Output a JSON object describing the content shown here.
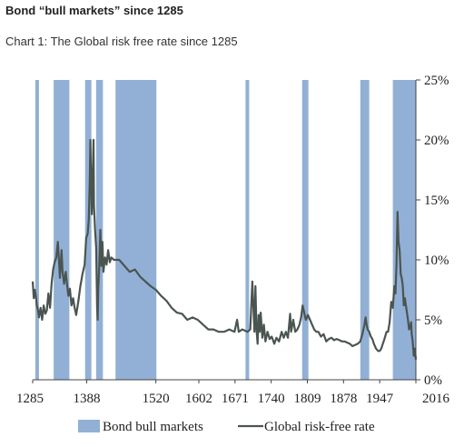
{
  "title": "Bond “bull markets” since 1285",
  "subtitle": "Chart 1: The Global risk free rate since 1285",
  "colors": {
    "bars": "#92b0d6",
    "line": "#4a5550",
    "axis": "#444444"
  },
  "chart_data": {
    "type": "line",
    "x_range": [
      1285,
      2016
    ],
    "ylim": [
      0,
      25
    ],
    "x_ticks": [
      1285,
      1388,
      1520,
      1602,
      1671,
      1740,
      1809,
      1878,
      1947,
      2016
    ],
    "y_ticks": [
      "0%",
      "5%",
      "10%",
      "15%",
      "20%",
      "25%"
    ],
    "legend": {
      "position": "bottom",
      "bars_label": "Bond bull markets",
      "line_label": "Global risk-free rate"
    },
    "bull_markets": [
      [
        1290,
        1297
      ],
      [
        1325,
        1355
      ],
      [
        1385,
        1397
      ],
      [
        1406,
        1419
      ],
      [
        1443,
        1521
      ],
      [
        1691,
        1698
      ],
      [
        1799,
        1811
      ],
      [
        1910,
        1927
      ],
      [
        1972,
        2016
      ]
    ],
    "series": [
      {
        "name": "Global risk-free rate",
        "points": [
          [
            1285,
            8.2
          ],
          [
            1287,
            6.8
          ],
          [
            1289,
            7.5
          ],
          [
            1291,
            7.0
          ],
          [
            1293,
            6.2
          ],
          [
            1295,
            5.8
          ],
          [
            1297,
            5.2
          ],
          [
            1300,
            6.0
          ],
          [
            1303,
            5.0
          ],
          [
            1306,
            6.2
          ],
          [
            1309,
            5.5
          ],
          [
            1312,
            5.8
          ],
          [
            1315,
            7.2
          ],
          [
            1318,
            6.0
          ],
          [
            1321,
            8.0
          ],
          [
            1324,
            9.2
          ],
          [
            1327,
            9.8
          ],
          [
            1330,
            10.2
          ],
          [
            1333,
            11.5
          ],
          [
            1335,
            10.0
          ],
          [
            1337,
            8.5
          ],
          [
            1340,
            10.8
          ],
          [
            1342,
            9.0
          ],
          [
            1345,
            8.0
          ],
          [
            1348,
            9.0
          ],
          [
            1350,
            8.2
          ],
          [
            1353,
            7.0
          ],
          [
            1356,
            7.6
          ],
          [
            1359,
            6.2
          ],
          [
            1362,
            6.8
          ],
          [
            1365,
            6.0
          ],
          [
            1368,
            5.4
          ],
          [
            1372,
            6.5
          ],
          [
            1376,
            7.8
          ],
          [
            1380,
            8.8
          ],
          [
            1384,
            9.6
          ],
          [
            1387,
            11.8
          ],
          [
            1390,
            12.2
          ],
          [
            1392,
            13.4
          ],
          [
            1394,
            16.8
          ],
          [
            1395,
            20.0
          ],
          [
            1396,
            17.5
          ],
          [
            1397,
            15.2
          ],
          [
            1398,
            13.8
          ],
          [
            1400,
            18.0
          ],
          [
            1401,
            20.0
          ],
          [
            1402,
            14.5
          ],
          [
            1404,
            12.5
          ],
          [
            1406,
            11.0
          ],
          [
            1408,
            6.0
          ],
          [
            1409,
            5.0
          ],
          [
            1410,
            7.5
          ],
          [
            1412,
            9.5
          ],
          [
            1414,
            12.5
          ],
          [
            1416,
            9.5
          ],
          [
            1418,
            11.5
          ],
          [
            1420,
            9.0
          ],
          [
            1423,
            10.2
          ],
          [
            1426,
            9.6
          ],
          [
            1429,
            10.8
          ],
          [
            1432,
            9.8
          ],
          [
            1435,
            10.2
          ],
          [
            1440,
            10.0
          ],
          [
            1450,
            10.0
          ],
          [
            1460,
            9.5
          ],
          [
            1470,
            9.0
          ],
          [
            1480,
            9.2
          ],
          [
            1490,
            8.6
          ],
          [
            1500,
            8.2
          ],
          [
            1510,
            7.8
          ],
          [
            1520,
            7.5
          ],
          [
            1530,
            7.0
          ],
          [
            1540,
            6.6
          ],
          [
            1550,
            6.0
          ],
          [
            1560,
            5.6
          ],
          [
            1570,
            5.5
          ],
          [
            1580,
            5.0
          ],
          [
            1590,
            5.2
          ],
          [
            1600,
            5.0
          ],
          [
            1610,
            4.6
          ],
          [
            1620,
            4.2
          ],
          [
            1630,
            4.2
          ],
          [
            1640,
            4.0
          ],
          [
            1650,
            4.0
          ],
          [
            1660,
            4.2
          ],
          [
            1670,
            4.0
          ],
          [
            1675,
            5.0
          ],
          [
            1678,
            4.0
          ],
          [
            1685,
            4.2
          ],
          [
            1695,
            4.0
          ],
          [
            1700,
            4.2
          ],
          [
            1704,
            8.2
          ],
          [
            1706,
            6.2
          ],
          [
            1708,
            4.0
          ],
          [
            1710,
            7.8
          ],
          [
            1712,
            4.2
          ],
          [
            1714,
            3.0
          ],
          [
            1716,
            5.4
          ],
          [
            1718,
            4.0
          ],
          [
            1720,
            5.6
          ],
          [
            1723,
            3.5
          ],
          [
            1726,
            4.6
          ],
          [
            1729,
            3.2
          ],
          [
            1733,
            4.0
          ],
          [
            1737,
            3.4
          ],
          [
            1741,
            3.6
          ],
          [
            1746,
            3.0
          ],
          [
            1750,
            3.5
          ],
          [
            1755,
            3.2
          ],
          [
            1760,
            4.0
          ],
          [
            1764,
            3.5
          ],
          [
            1768,
            4.0
          ],
          [
            1772,
            3.5
          ],
          [
            1776,
            5.5
          ],
          [
            1778,
            4.0
          ],
          [
            1782,
            5.0
          ],
          [
            1786,
            4.0
          ],
          [
            1790,
            4.2
          ],
          [
            1794,
            4.6
          ],
          [
            1797,
            5.2
          ],
          [
            1800,
            6.2
          ],
          [
            1803,
            5.6
          ],
          [
            1806,
            5.0
          ],
          [
            1810,
            5.4
          ],
          [
            1814,
            5.0
          ],
          [
            1818,
            4.6
          ],
          [
            1822,
            4.2
          ],
          [
            1826,
            4.0
          ],
          [
            1830,
            4.0
          ],
          [
            1835,
            3.6
          ],
          [
            1840,
            3.8
          ],
          [
            1845,
            3.2
          ],
          [
            1850,
            3.4
          ],
          [
            1855,
            3.5
          ],
          [
            1860,
            3.3
          ],
          [
            1865,
            3.4
          ],
          [
            1870,
            3.3
          ],
          [
            1875,
            3.2
          ],
          [
            1880,
            3.2
          ],
          [
            1885,
            3.1
          ],
          [
            1890,
            3.0
          ],
          [
            1895,
            2.8
          ],
          [
            1900,
            2.9
          ],
          [
            1905,
            3.0
          ],
          [
            1910,
            3.2
          ],
          [
            1914,
            3.8
          ],
          [
            1918,
            4.6
          ],
          [
            1920,
            5.2
          ],
          [
            1922,
            4.6
          ],
          [
            1924,
            4.2
          ],
          [
            1927,
            4.0
          ],
          [
            1930,
            3.6
          ],
          [
            1933,
            3.4
          ],
          [
            1936,
            3.0
          ],
          [
            1940,
            2.6
          ],
          [
            1944,
            2.4
          ],
          [
            1947,
            2.4
          ],
          [
            1950,
            2.6
          ],
          [
            1953,
            3.0
          ],
          [
            1956,
            3.4
          ],
          [
            1960,
            4.0
          ],
          [
            1963,
            4.0
          ],
          [
            1966,
            4.8
          ],
          [
            1969,
            6.5
          ],
          [
            1972,
            6.0
          ],
          [
            1975,
            7.8
          ],
          [
            1977,
            7.2
          ],
          [
            1979,
            9.5
          ],
          [
            1981,
            14.0
          ],
          [
            1983,
            11.5
          ],
          [
            1985,
            10.8
          ],
          [
            1987,
            8.8
          ],
          [
            1989,
            8.5
          ],
          [
            1991,
            7.8
          ],
          [
            1993,
            6.2
          ],
          [
            1995,
            6.8
          ],
          [
            1997,
            6.2
          ],
          [
            1999,
            5.6
          ],
          [
            2001,
            5.0
          ],
          [
            2003,
            4.2
          ],
          [
            2005,
            4.4
          ],
          [
            2007,
            4.8
          ],
          [
            2008,
            3.8
          ],
          [
            2010,
            3.2
          ],
          [
            2012,
            2.0
          ],
          [
            2014,
            2.6
          ],
          [
            2016,
            1.7
          ]
        ]
      }
    ]
  }
}
